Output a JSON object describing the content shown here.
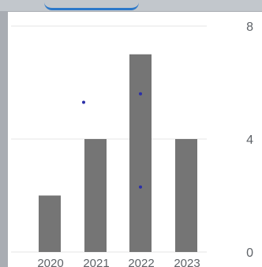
{
  "chart_data": {
    "type": "bar",
    "categories": [
      "2020",
      "2021",
      "2022",
      "2023"
    ],
    "values": [
      2,
      4,
      7,
      4
    ],
    "overlay_points": [
      {
        "x": "2021",
        "y": 5.3
      },
      {
        "x": "2022",
        "y": 5.6
      },
      {
        "x": "2022",
        "y": 2.3
      }
    ],
    "yticks": [
      0,
      4,
      8
    ],
    "ylim": [
      0,
      8
    ],
    "grid": true,
    "colors": {
      "bar": "#757575",
      "point": "#2b2fa8",
      "grid": "#e6e6e6"
    }
  }
}
